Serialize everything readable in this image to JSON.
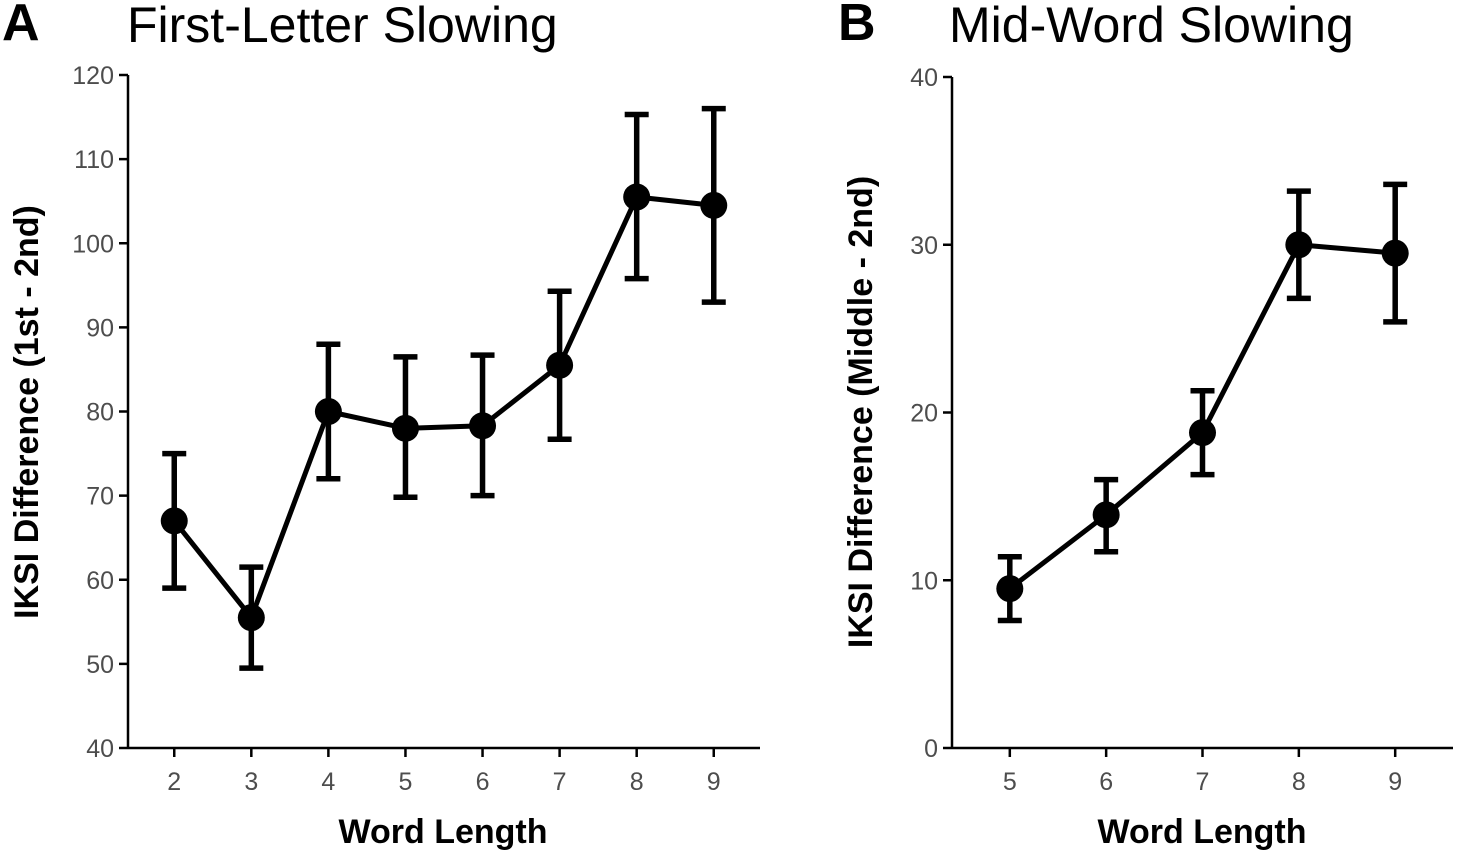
{
  "chart_data": [
    {
      "type": "line",
      "panel_label": "A",
      "title": "First-Letter Slowing",
      "xlabel": "Word Length",
      "ylabel": "IKSI Difference (1st - 2nd)",
      "x": [
        2,
        3,
        4,
        5,
        6,
        7,
        8,
        9
      ],
      "y": [
        67,
        55.5,
        80,
        78,
        78.3,
        85.5,
        105.5,
        104.5
      ],
      "y_err_low": [
        59,
        49.5,
        72,
        69.8,
        70,
        76.7,
        95.8,
        93
      ],
      "y_err_high": [
        75,
        61.5,
        88,
        86.5,
        86.7,
        94.3,
        115.3,
        116
      ],
      "xticks": [
        "2",
        "3",
        "4",
        "5",
        "6",
        "7",
        "8",
        "9"
      ],
      "yticks": [
        "40",
        "50",
        "60",
        "70",
        "80",
        "90",
        "100",
        "110",
        "120"
      ],
      "ylim": [
        40,
        120
      ],
      "xlim": [
        1.4,
        9.6
      ],
      "grid": false,
      "color": "#000000"
    },
    {
      "type": "line",
      "panel_label": "B",
      "title": "Mid-Word Slowing",
      "xlabel": "Word Length",
      "ylabel": "IKSI Difference (Middle - 2nd)",
      "x": [
        5,
        6,
        7,
        8,
        9
      ],
      "y": [
        9.5,
        13.9,
        18.8,
        30,
        29.5
      ],
      "y_err_low": [
        7.6,
        11.7,
        16.3,
        26.8,
        25.4
      ],
      "y_err_high": [
        11.4,
        16,
        21.3,
        33.2,
        33.6
      ],
      "xticks": [
        "5",
        "6",
        "7",
        "8",
        "9"
      ],
      "yticks": [
        "0",
        "10",
        "20",
        "30",
        "40"
      ],
      "ylim": [
        0,
        40
      ],
      "xlim": [
        4.4,
        9.6
      ],
      "grid": false,
      "color": "#000000"
    }
  ]
}
